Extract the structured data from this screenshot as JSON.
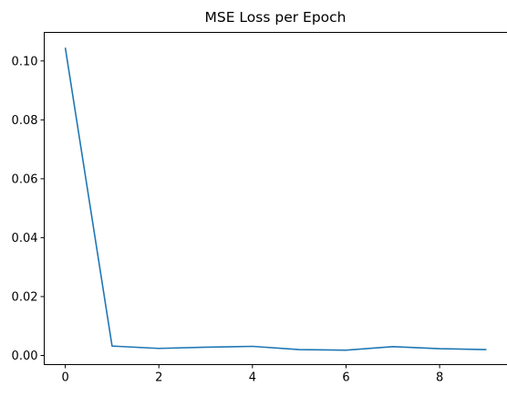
{
  "chart_data": {
    "type": "line",
    "title": "MSE Loss per Epoch",
    "xlabel": "",
    "ylabel": "",
    "x": [
      0,
      1,
      2,
      3,
      4,
      5,
      6,
      7,
      8,
      9
    ],
    "series": [
      {
        "values": [
          0.1045,
          0.0032,
          0.0024,
          0.0028,
          0.0031,
          0.002,
          0.0018,
          0.003,
          0.0023,
          0.002
        ]
      }
    ],
    "xlim": [
      -0.45,
      9.45
    ],
    "ylim": [
      -0.0031,
      0.1097
    ],
    "x_ticks": [
      0,
      2,
      4,
      6,
      8
    ],
    "x_tick_labels": [
      "0",
      "2",
      "4",
      "6",
      "8"
    ],
    "y_ticks": [
      0.0,
      0.02,
      0.04,
      0.06,
      0.08,
      0.1
    ],
    "y_tick_labels": [
      "0.00",
      "0.02",
      "0.04",
      "0.06",
      "0.08",
      "0.10"
    ],
    "grid": false,
    "legend": "none",
    "line_color": "#1f77b4"
  }
}
